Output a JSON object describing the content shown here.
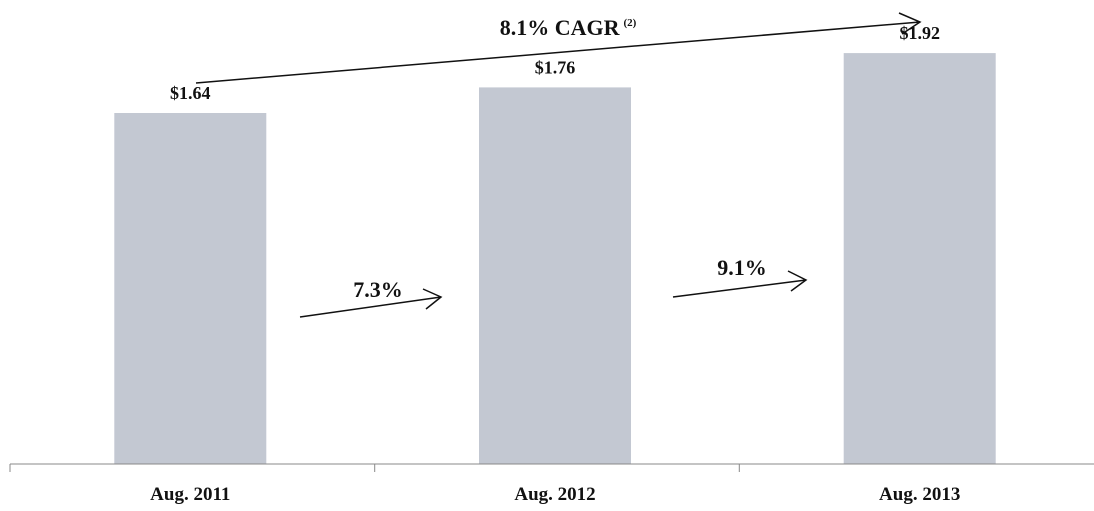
{
  "chart_data": {
    "type": "bar",
    "categories": [
      "Aug. 2011",
      "Aug. 2012",
      "Aug. 2013"
    ],
    "values": [
      1.64,
      1.76,
      1.92
    ],
    "data_labels": [
      "$1.64",
      "$1.76",
      "$1.92"
    ],
    "title": "",
    "xlabel": "",
    "ylabel": "",
    "ylim": [
      0,
      2.0
    ],
    "grid": false,
    "bar_color": "#c3c8d2",
    "annotations": {
      "cagr": {
        "text": "8.1% CAGR",
        "superscript": "(2)"
      },
      "growth": [
        "7.3%",
        "9.1%"
      ]
    }
  }
}
